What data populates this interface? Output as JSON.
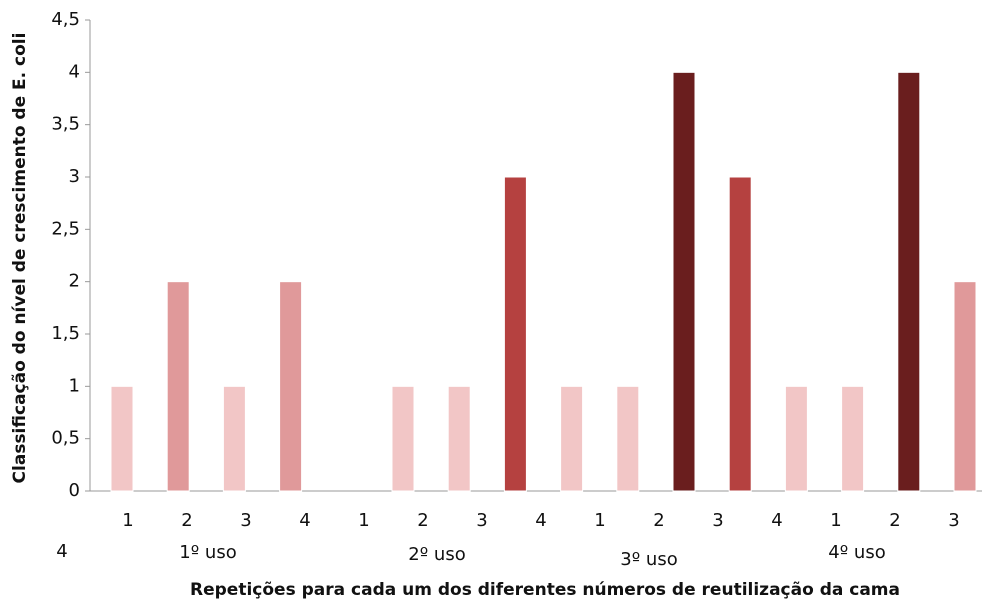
{
  "chart_data": {
    "type": "bar",
    "x_label": "Repetições para cada um dos diferentes números de reutilização da cama",
    "y_label": "Classificação do nível de crescimento de E. coli",
    "categories": [
      "1",
      "2",
      "3",
      "4",
      "1",
      "2",
      "3",
      "4",
      "1",
      "2",
      "3",
      "4",
      "1",
      "2",
      "3",
      "4"
    ],
    "groups": [
      "1º uso",
      "2º uso",
      "3º uso",
      "4º uso"
    ],
    "values": [
      1,
      2,
      1,
      2,
      0,
      1,
      1,
      3,
      1,
      1,
      4,
      3,
      1,
      1,
      4,
      2
    ],
    "colors": [
      "#f2c6c6",
      "#e0999a",
      "#f2c6c6",
      "#e0999a",
      "#f2c6c6",
      "#f2c6c6",
      "#f2c6c6",
      "#b54140",
      "#f2c6c6",
      "#f2c6c6",
      "#6a1e1e",
      "#b54140",
      "#f2c6c6",
      "#f2c6c6",
      "#6a1e1e",
      "#e0999a"
    ],
    "ylim": [
      0,
      4.5
    ],
    "yticks": [
      0,
      {
        "value": 0.5,
        "label": "0,5"
      },
      1,
      {
        "value": 1.5,
        "label": "1,5"
      },
      2,
      {
        "value": 2.5,
        "label": "2,5"
      },
      3,
      {
        "value": 3.5,
        "label": "3,5"
      },
      4,
      {
        "value": 4.5,
        "label": "4,5"
      }
    ],
    "grid": false
  }
}
